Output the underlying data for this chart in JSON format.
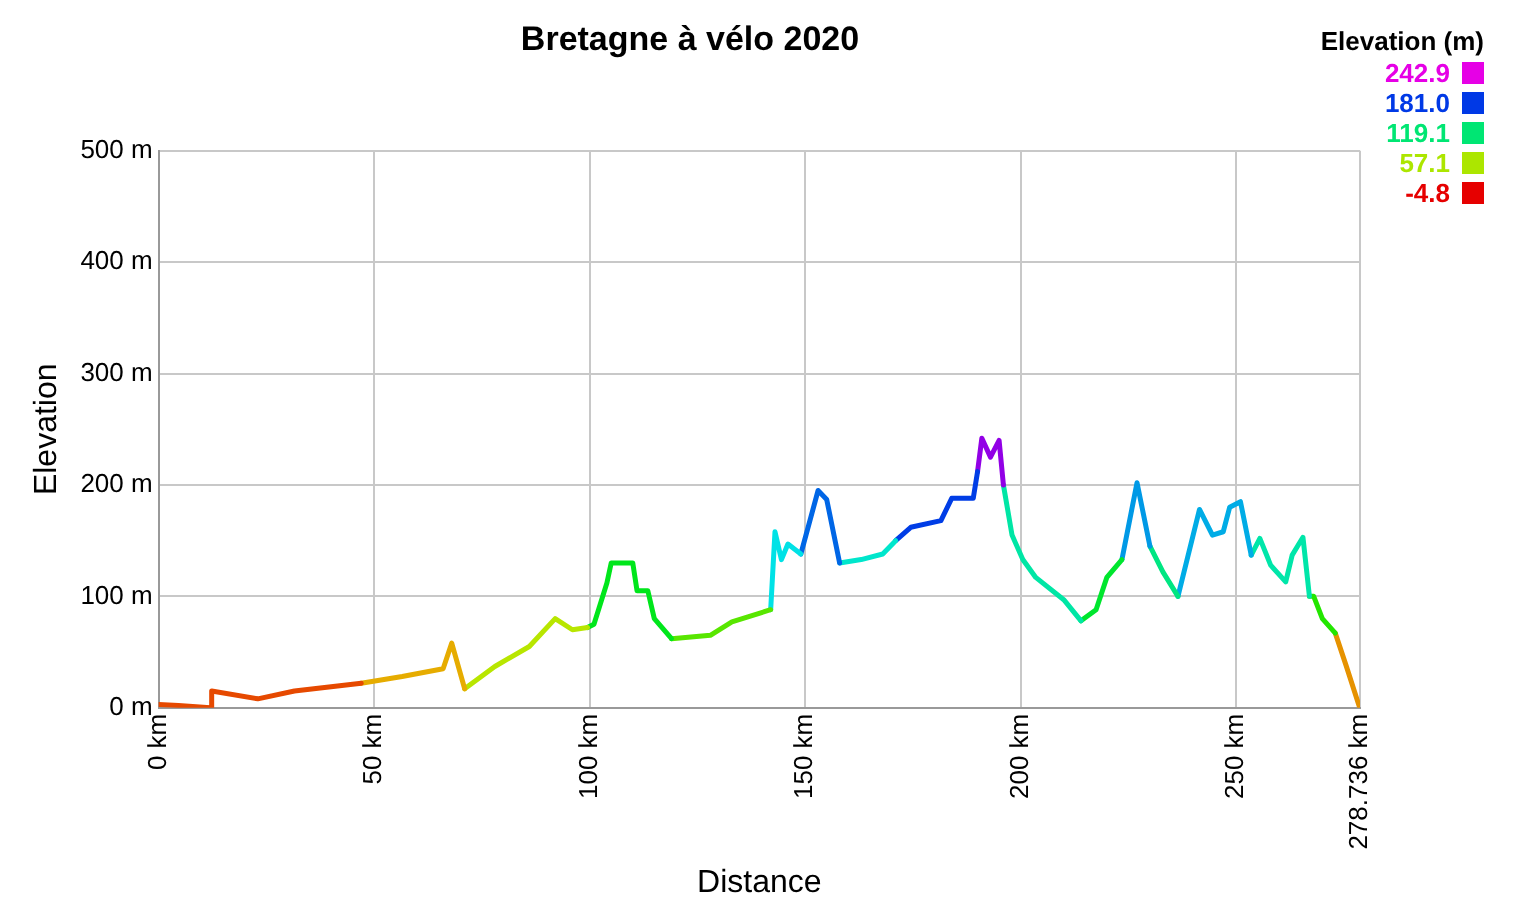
{
  "chart_data": {
    "type": "line",
    "title": "Bretagne à vélo 2020",
    "xlabel": "Distance",
    "ylabel": "Elevation",
    "clabel": "Elevation (m)",
    "series": [
      {
        "color": "#e64900",
        "x": [
          0,
          4.6,
          12,
          12.3,
          23,
          31.5,
          47
        ],
        "values": [
          3,
          2,
          0,
          15,
          8,
          15,
          22
        ]
      },
      {
        "color": "#e6ac00",
        "x": [
          47,
          56.5,
          66,
          68,
          71
        ],
        "values": [
          22,
          28,
          35,
          58,
          17
        ]
      },
      {
        "color": "#b8e600",
        "x": [
          71,
          78,
          86,
          92,
          96,
          99.5
        ],
        "values": [
          17,
          37,
          55,
          80,
          70,
          72
        ]
      },
      {
        "color": "#00e61b",
        "x": [
          99.5,
          101,
          104,
          105,
          110,
          111,
          113.5,
          115,
          119
        ],
        "values": [
          72,
          75,
          112,
          130,
          130,
          105,
          105,
          80,
          62
        ]
      },
      {
        "color": "#58e600",
        "x": [
          119,
          128,
          133,
          142
        ],
        "values": [
          62,
          65,
          77,
          88
        ]
      },
      {
        "color": "#00e2e6",
        "x": [
          142,
          143,
          144.5,
          146,
          149
        ],
        "values": [
          88,
          158,
          133,
          147,
          138
        ]
      },
      {
        "color": "#0066e6",
        "x": [
          149,
          153,
          155,
          158
        ],
        "values": [
          138,
          195,
          187,
          130
        ]
      },
      {
        "color": "#00e6cc",
        "x": [
          158,
          163,
          168,
          171
        ],
        "values": [
          130,
          133,
          138,
          150
        ]
      },
      {
        "color": "#003de6",
        "x": [
          171,
          174.5,
          181.5,
          184,
          189,
          190
        ],
        "values": [
          150,
          162,
          168,
          188,
          188,
          212
        ]
      },
      {
        "color": "#9200e6",
        "x": [
          190,
          191,
          193,
          195,
          196
        ],
        "values": [
          212,
          242,
          225,
          240,
          200
        ]
      },
      {
        "color": "#00e6a5",
        "x": [
          196,
          198,
          200.5,
          203.5,
          210,
          214
        ],
        "values": [
          200,
          155,
          133,
          117,
          97,
          78
        ]
      },
      {
        "color": "#00e62e",
        "x": [
          214,
          217.5,
          220,
          223.5
        ],
        "values": [
          78,
          88,
          117,
          133
        ]
      },
      {
        "color": "#0099e6",
        "x": [
          223.5,
          227,
          230
        ],
        "values": [
          133,
          202,
          145
        ]
      },
      {
        "color": "#00e682",
        "x": [
          230,
          233,
          236.5
        ],
        "values": [
          145,
          122,
          100
        ]
      },
      {
        "color": "#00ace6",
        "x": [
          236.5,
          241.5,
          244.5,
          247,
          248.5,
          251,
          253.5
        ],
        "values": [
          100,
          178,
          155,
          158,
          180,
          185,
          137
        ]
      },
      {
        "color": "#00e6a9",
        "x": [
          253.5,
          255.5,
          258,
          261.5,
          263,
          265.5,
          267
        ],
        "values": [
          137,
          152,
          128,
          113,
          137,
          153,
          100
        ]
      },
      {
        "color": "#23e600",
        "x": [
          267,
          268,
          270,
          273
        ],
        "values": [
          100,
          100,
          80,
          67
        ]
      },
      {
        "color": "#e69200",
        "x": [
          273,
          275.5,
          278.5,
          278.736
        ],
        "values": [
          67,
          38,
          2,
          0
        ]
      }
    ],
    "xlim": [
      0,
      278.736
    ],
    "xticks": [
      {
        "value": 0,
        "label": "0 km"
      },
      {
        "value": 50,
        "label": "50 km"
      },
      {
        "value": 100,
        "label": "100 km"
      },
      {
        "value": 150,
        "label": "150 km"
      },
      {
        "value": 200,
        "label": "200 km"
      },
      {
        "value": 250,
        "label": "250 km"
      },
      {
        "value": 278.736,
        "label": "278.736 km"
      }
    ],
    "ylim": [
      0,
      500
    ],
    "yticks": [
      {
        "value": 0,
        "label": "0 m"
      },
      {
        "value": 100,
        "label": "100 m"
      },
      {
        "value": 200,
        "label": "200 m"
      },
      {
        "value": 300,
        "label": "300 m"
      },
      {
        "value": 400,
        "label": "400 m"
      },
      {
        "value": 500,
        "label": "500 m"
      }
    ],
    "grid": true,
    "clim": [
      -4.8,
      242.9
    ],
    "cticks": [
      242.9,
      {
        "value": 181,
        "label": "181.0"
      },
      119.1,
      57.1,
      -4.8
    ]
  }
}
